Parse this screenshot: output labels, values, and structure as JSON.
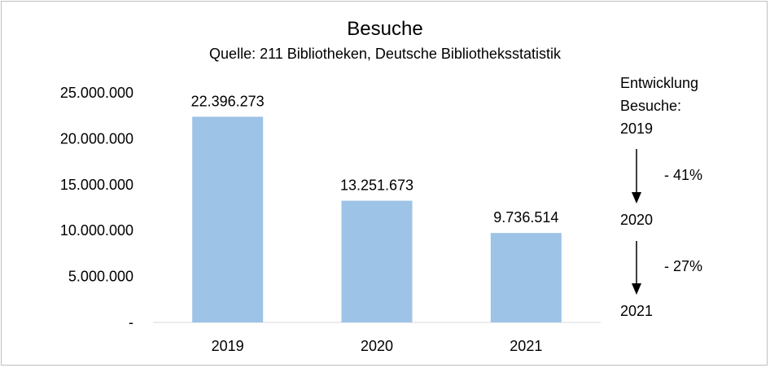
{
  "chart_data": {
    "type": "bar",
    "title": "Besuche",
    "subtitle": "Quelle: 211 Bibliotheken, Deutsche Bibliotheksstatistik",
    "categories": [
      "2019",
      "2020",
      "2021"
    ],
    "values": [
      22396273,
      13251673,
      9736514
    ],
    "value_labels": [
      "22.396.273",
      "13.251.673",
      "9.736.514"
    ],
    "ylim": [
      0,
      25000000
    ],
    "yticks": [
      0,
      5000000,
      10000000,
      15000000,
      20000000,
      25000000
    ],
    "ytick_labels": [
      "-",
      "5.000.000",
      "10.000.000",
      "15.000.000",
      "20.000.000",
      "25.000.000"
    ],
    "grid": false,
    "bar_color": "#9dc3e6"
  },
  "annotation": {
    "heading_line1": "Entwicklung",
    "heading_line2": "Besuche:",
    "year_2019": "2019",
    "change_1": "- 41%",
    "year_2020": "2020",
    "change_2": "- 27%",
    "year_2021": "2021"
  }
}
